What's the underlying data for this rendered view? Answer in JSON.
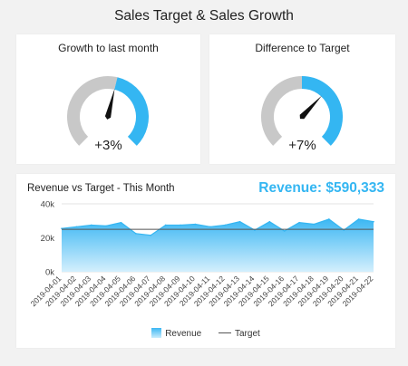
{
  "page": {
    "title": "Sales Target & Sales Growth"
  },
  "gauges": [
    {
      "title": "Growth to last month",
      "value_label": "+3%",
      "fill_fraction": 0.55,
      "needle_fraction": 0.55,
      "track_color": "#c8c8c8",
      "fill_color": "#34b6f2"
    },
    {
      "title": "Difference to Target",
      "value_label": "+7%",
      "fill_fraction": 0.5,
      "needle_fraction": 0.66,
      "track_color": "#c8c8c8",
      "fill_color": "#34b6f2"
    }
  ],
  "chart": {
    "title": "Revenue vs Target - This Month",
    "kpi": "Revenue: $590,333"
  },
  "legend": {
    "revenue": "Revenue",
    "target": "Target"
  },
  "chart_data": {
    "type": "area",
    "categories": [
      "2019-04-01",
      "2019-04-02",
      "2019-04-03",
      "2019-04-04",
      "2019-04-05",
      "2019-04-06",
      "2019-04-07",
      "2019-04-08",
      "2019-04-09",
      "2019-04-10",
      "2019-04-11",
      "2019-04-12",
      "2019-04-13",
      "2019-04-14",
      "2019-04-15",
      "2019-04-16",
      "2019-04-17",
      "2019-04-18",
      "2019-04-19",
      "2019-04-20",
      "2019-04-21",
      "2019-04-22"
    ],
    "series": [
      {
        "name": "Revenue",
        "type": "area",
        "values": [
          25500,
          26500,
          27500,
          27000,
          29000,
          22500,
          21500,
          27500,
          27500,
          28000,
          26500,
          27500,
          29500,
          24500,
          29500,
          24000,
          29000,
          28000,
          31000,
          24500,
          31000,
          29500
        ],
        "color": "#34b6f2"
      },
      {
        "name": "Target",
        "type": "line",
        "value": 25000,
        "color": "#555555"
      }
    ],
    "y_ticks": [
      "0k",
      "20k",
      "40k"
    ],
    "ylim": [
      0,
      40000
    ],
    "grid": true,
    "legend_position": "bottom"
  }
}
